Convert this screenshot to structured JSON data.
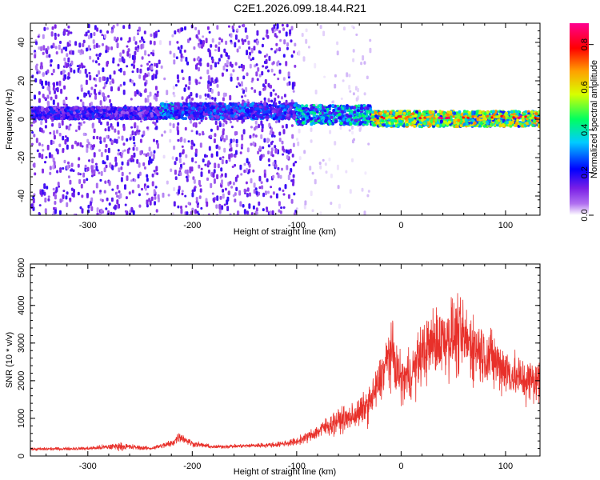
{
  "title": "C2E1.2026.099.18.44.R21",
  "chart_data": [
    {
      "type": "heatmap",
      "xlabel": "Height of straight line (km)",
      "ylabel": "Frequency (Hz)",
      "xlim": [
        -355,
        133
      ],
      "ylim": [
        -50,
        50
      ],
      "xticks": [
        -300,
        -200,
        -100,
        0,
        100
      ],
      "yticks": [
        -40,
        -20,
        0,
        20,
        40
      ],
      "colorbar": {
        "label": "Normalized spectral amplitude",
        "range": [
          0.0,
          0.9
        ],
        "ticks": [
          0.0,
          0.2,
          0.4,
          0.6,
          0.8
        ],
        "colors": [
          "#ffffff",
          "#8a2be2",
          "#0000ff",
          "#00ffff",
          "#00ff00",
          "#ffff00",
          "#ff8000",
          "#ff0000",
          "#ff00a0"
        ]
      },
      "regions": [
        {
          "x": [
            -355,
            -232
          ],
          "band_center_hz": 4,
          "band_halfwidth_hz": 3,
          "band_amplitude": 0.2,
          "scatter_amplitude": 0.15
        },
        {
          "x": [
            -232,
            -218
          ],
          "band_center_hz": 5,
          "band_halfwidth_hz": 4,
          "band_amplitude": 0.35,
          "scatter_amplitude": 0.05
        },
        {
          "x": [
            -218,
            -102
          ],
          "band_center_hz": 5,
          "band_halfwidth_hz": 4,
          "band_amplitude": 0.25,
          "scatter_amplitude": 0.15
        },
        {
          "x": [
            -102,
            -30
          ],
          "band_center_hz": 3,
          "band_halfwidth_hz": 5,
          "band_amplitude": 0.35,
          "scatter_amplitude": 0.03
        },
        {
          "x": [
            -30,
            133
          ],
          "band_center_hz": 1,
          "band_halfwidth_hz": 4,
          "band_amplitude": 0.55,
          "scatter_amplitude": 0.0
        }
      ],
      "ridge": {
        "x": [
          -20,
          133
        ],
        "frequency_hz": 1,
        "amplitude": 0.85
      }
    },
    {
      "type": "line",
      "xlabel": "Height of straight line (km)",
      "ylabel": "SNR (10 * v/v)",
      "xlim": [
        -355,
        133
      ],
      "ylim": [
        0,
        5100
      ],
      "xticks": [
        -300,
        -200,
        -100,
        0,
        100
      ],
      "yticks": [
        0,
        1000,
        2000,
        3000,
        4000,
        5000
      ],
      "color": "#e8302a",
      "series": [
        {
          "x": [
            -355,
            -330,
            -300,
            -270,
            -240,
            -220,
            -212,
            -200,
            -180,
            -150,
            -120,
            -100,
            -90,
            -80,
            -70,
            -60,
            -50,
            -40,
            -30,
            -20,
            -10,
            0,
            10,
            20,
            30,
            40,
            50,
            60,
            70,
            80,
            90,
            100,
            110,
            120,
            133
          ],
          "values": [
            180,
            190,
            200,
            260,
            200,
            330,
            520,
            330,
            240,
            270,
            300,
            380,
            500,
            650,
            800,
            950,
            1000,
            1150,
            1400,
            2000,
            2800,
            2000,
            2200,
            2700,
            3000,
            3100,
            3200,
            3100,
            2900,
            2700,
            2500,
            2300,
            2100,
            2000,
            2000
          ],
          "spread": [
            60,
            60,
            60,
            150,
            60,
            150,
            200,
            120,
            70,
            80,
            100,
            150,
            200,
            300,
            400,
            450,
            500,
            550,
            700,
            900,
            1200,
            900,
            1000,
            1200,
            1300,
            1400,
            1500,
            1400,
            1300,
            1200,
            1100,
            1000,
            900,
            900,
            900
          ]
        }
      ]
    }
  ]
}
